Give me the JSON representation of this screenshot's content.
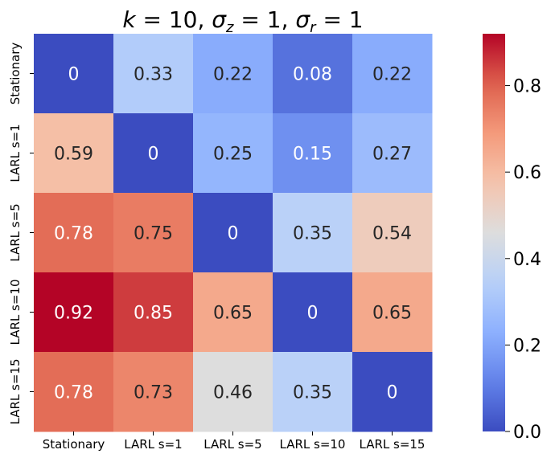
{
  "chart_data": {
    "type": "heatmap",
    "title": "k = 10, σz = 1, σr = 1",
    "title_parts": {
      "k_symbol": "k",
      "k_eq": " = 10, ",
      "sz_symbol": "σ",
      "sz_sub": "z",
      "sz_eq": " = 1, ",
      "sr_symbol": "σ",
      "sr_sub": "r",
      "sr_eq": " = 1"
    },
    "row_labels": [
      "Stationary",
      "LARL s=1",
      "LARL s=5",
      "LARL s=10",
      "LARL s=15"
    ],
    "col_labels": [
      "Stationary",
      "LARL s=1",
      "LARL s=5",
      "LARL s=10",
      "LARL s=15"
    ],
    "values": [
      [
        0,
        0.33,
        0.22,
        0.08,
        0.22
      ],
      [
        0.59,
        0,
        0.25,
        0.15,
        0.27
      ],
      [
        0.78,
        0.75,
        0,
        0.35,
        0.54
      ],
      [
        0.92,
        0.85,
        0.65,
        0,
        0.65
      ],
      [
        0.78,
        0.73,
        0.46,
        0.35,
        0
      ]
    ],
    "value_labels": [
      [
        "0",
        "0.33",
        "0.22",
        "0.08",
        "0.22"
      ],
      [
        "0.59",
        "0",
        "0.25",
        "0.15",
        "0.27"
      ],
      [
        "0.78",
        "0.75",
        "0",
        "0.35",
        "0.54"
      ],
      [
        "0.92",
        "0.85",
        "0.65",
        "0",
        "0.65"
      ],
      [
        "0.78",
        "0.73",
        "0.46",
        "0.35",
        "0"
      ]
    ],
    "colormap": "coolwarm",
    "vmin": 0,
    "vmax": 0.92,
    "colorbar_ticks": [
      0.0,
      0.2,
      0.4,
      0.6,
      0.8
    ],
    "colorbar_tick_labels": [
      "0.0",
      "0.2",
      "0.4",
      "0.6",
      "0.8"
    ],
    "xlabel": "",
    "ylabel": ""
  }
}
